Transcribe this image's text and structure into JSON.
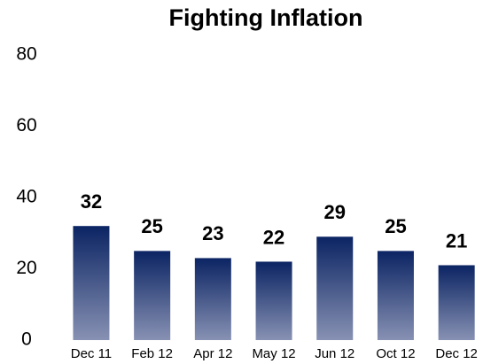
{
  "chart_data": {
    "type": "bar",
    "title": "Fighting Inflation",
    "categories": [
      "Dec 11",
      "Feb 12",
      "Apr 12",
      "May 12",
      "Jun 12",
      "Oct 12",
      "Dec 12"
    ],
    "values": [
      32,
      25,
      23,
      22,
      29,
      25,
      21
    ],
    "gradient": [
      "#0b2463",
      "#8791b3"
    ],
    "ylim": [
      0,
      80
    ],
    "yticks": [
      0,
      20,
      40,
      60,
      80
    ],
    "grid": false
  }
}
